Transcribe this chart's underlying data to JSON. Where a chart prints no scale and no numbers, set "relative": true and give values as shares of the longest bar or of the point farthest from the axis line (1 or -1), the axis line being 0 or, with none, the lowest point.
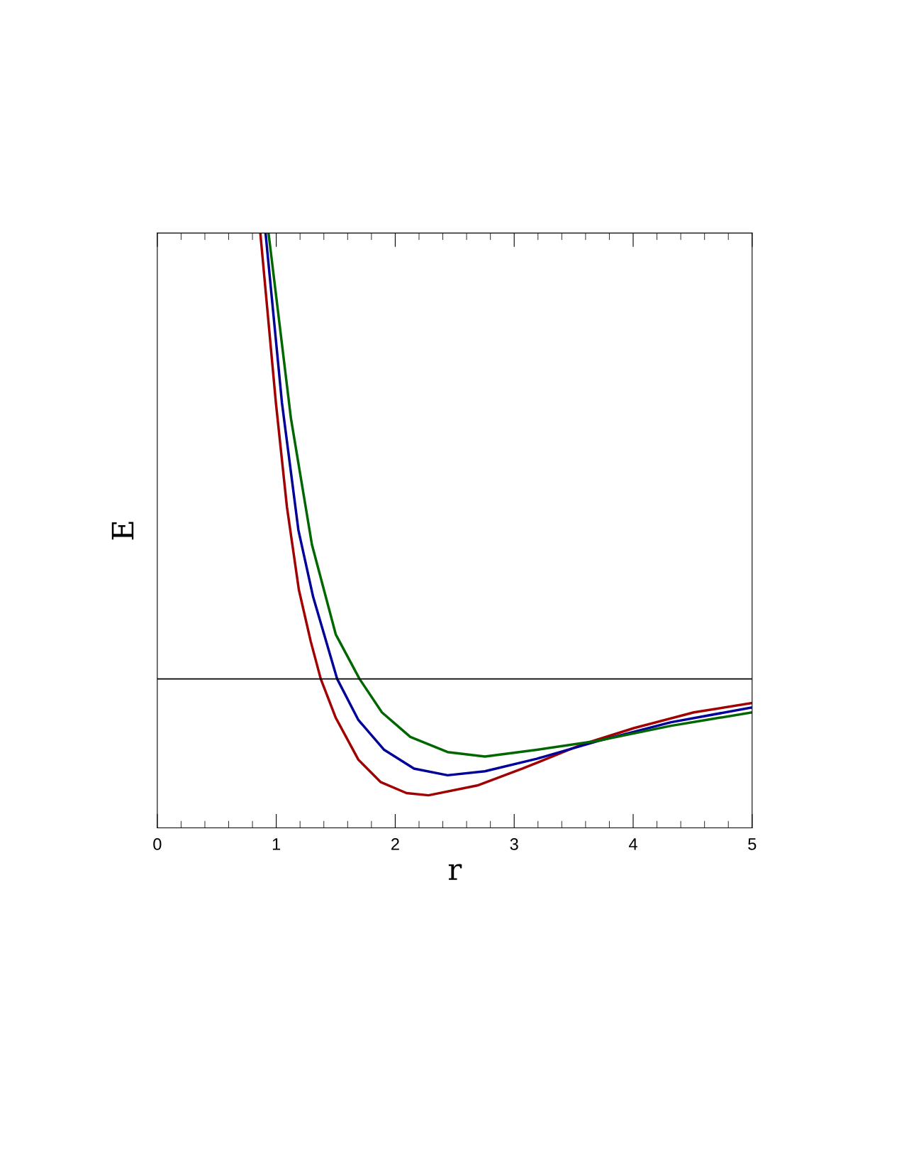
{
  "chart_data": {
    "type": "line",
    "xlabel": "r",
    "ylabel": "E",
    "relative": true,
    "xlim": [
      0,
      5
    ],
    "xticks": [
      0,
      1,
      2,
      3,
      4,
      5
    ],
    "grid": false,
    "legend": false,
    "marker": "none",
    "line_style": "solid",
    "tick_labels": "x",
    "ref_lines": [
      {
        "axis": "y",
        "value": 0,
        "color": "#000000"
      }
    ],
    "series": [
      {
        "color": "#a00000",
        "x": [
          0.866,
          0.997,
          1.09,
          1.19,
          1.29,
          1.374,
          1.5,
          1.69,
          1.876,
          2.095,
          2.28,
          2.69,
          3.07,
          3.57,
          4.01,
          4.51,
          5.0
        ],
        "values": [
          1,
          0.619,
          0.385,
          0.2,
          0.084,
          0,
          -0.087,
          -0.181,
          -0.231,
          -0.256,
          -0.261,
          -0.239,
          -0.201,
          -0.147,
          -0.11,
          -0.075,
          -0.054
        ]
      },
      {
        "color": "#000099",
        "x": [
          0.91,
          1.048,
          1.186,
          1.31,
          1.512,
          1.69,
          1.907,
          2.158,
          2.44,
          2.754,
          3.19,
          3.695,
          4.32,
          5.0
        ],
        "values": [
          1,
          0.619,
          0.334,
          0.184,
          0,
          -0.092,
          -0.159,
          -0.201,
          -0.216,
          -0.207,
          -0.179,
          -0.14,
          -0.097,
          -0.064
        ]
      },
      {
        "color": "#006600",
        "x": [
          0.935,
          1.123,
          1.3,
          1.5,
          1.7,
          1.888,
          2.127,
          2.44,
          2.754,
          3.19,
          3.695,
          4.32,
          5.0
        ],
        "values": [
          1,
          0.585,
          0.301,
          0.1,
          0,
          -0.075,
          -0.13,
          -0.164,
          -0.174,
          -0.159,
          -0.139,
          -0.105,
          -0.075
        ]
      }
    ]
  }
}
